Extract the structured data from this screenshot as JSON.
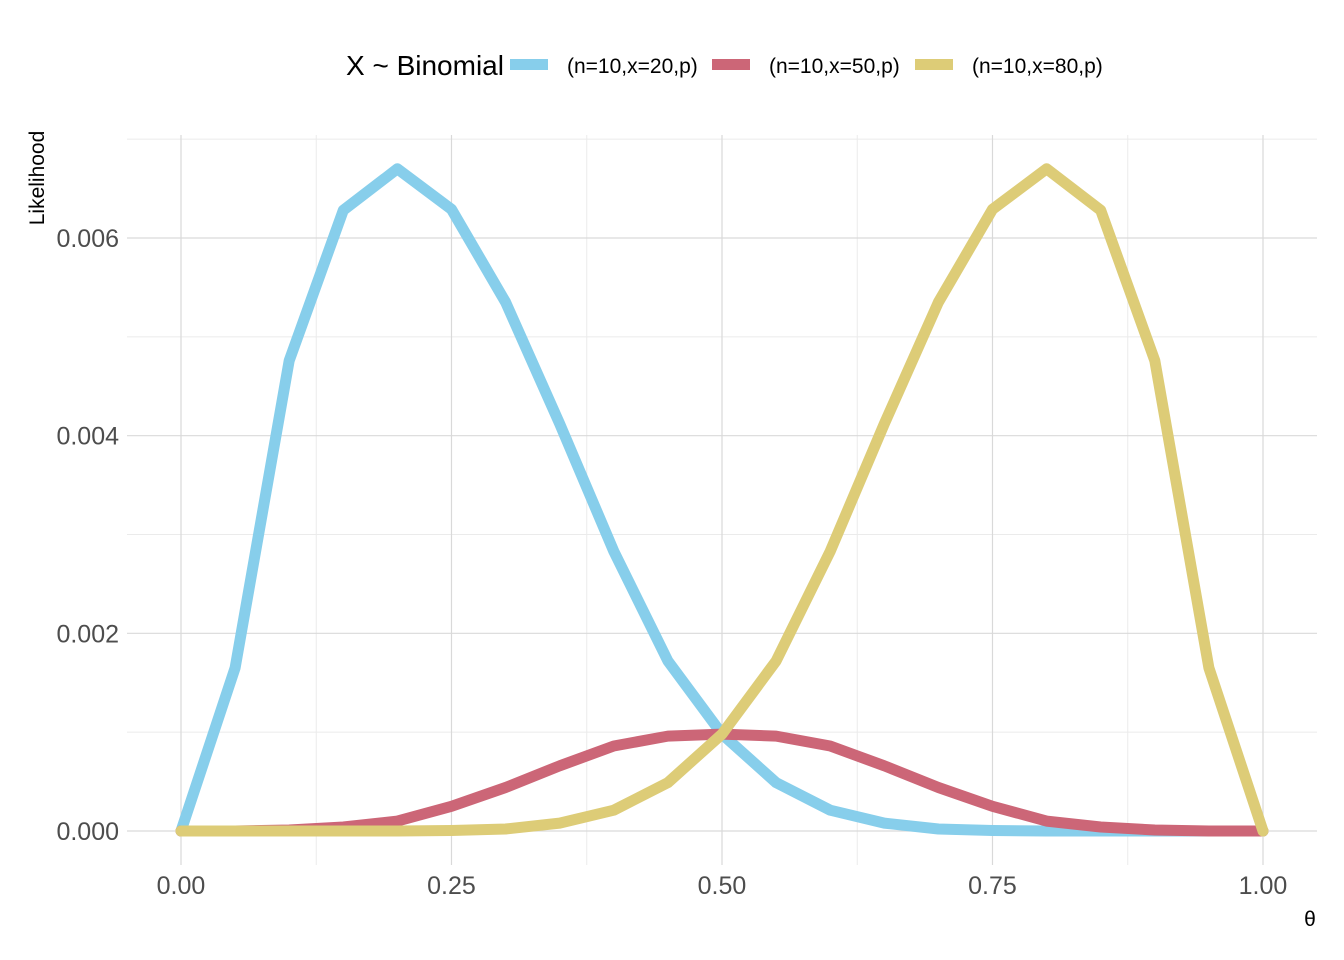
{
  "chart_data": {
    "type": "line",
    "xlabel": "θ",
    "ylabel": "Likelihood",
    "xlim": [
      0,
      1
    ],
    "ylim": [
      0,
      0.0068
    ],
    "x_ticks": [
      0,
      0.25,
      0.5,
      0.75,
      1
    ],
    "x_tick_labels": [
      "0.00",
      "0.25",
      "0.50",
      "0.75",
      "1.00"
    ],
    "y_ticks": [
      0,
      0.002,
      0.004,
      0.006
    ],
    "y_tick_labels": [
      "0.000",
      "0.002",
      "0.004",
      "0.006"
    ],
    "grid": true,
    "legend": {
      "title": "X ~ Binomial",
      "position": "top"
    },
    "series": [
      {
        "name": "(n=10,x=20,p)",
        "color": "#87CEEB",
        "x": [
          0,
          0.05,
          0.1,
          0.15,
          0.2,
          0.25,
          0.3,
          0.35,
          0.4,
          0.45,
          0.5,
          0.55,
          0.6,
          0.65,
          0.7,
          0.75,
          0.8,
          0.85,
          0.9,
          0.95,
          1
        ],
        "values": [
          0,
          0.00165,
          0.00476,
          0.00628,
          0.0067,
          0.00629,
          0.00535,
          0.00412,
          0.00283,
          0.00172,
          0.00098,
          0.00049,
          0.00021,
          8e-05,
          2e-05,
          5e-06,
          0,
          0,
          0,
          0,
          0
        ]
      },
      {
        "name": "(n=10,x=50,p)",
        "color": "#CC6677",
        "x": [
          0,
          0.05,
          0.1,
          0.15,
          0.2,
          0.25,
          0.3,
          0.35,
          0.4,
          0.45,
          0.5,
          0.55,
          0.6,
          0.65,
          0.7,
          0.75,
          0.8,
          0.85,
          0.9,
          0.95,
          1
        ],
        "values": [
          0,
          0,
          1e-05,
          4e-05,
          0.0001,
          0.00025,
          0.00044,
          0.00066,
          0.00086,
          0.00096,
          0.00098,
          0.00096,
          0.00086,
          0.00066,
          0.00044,
          0.00025,
          0.0001,
          4e-05,
          1e-05,
          0,
          0
        ]
      },
      {
        "name": "(n=10,x=80,p)",
        "color": "#DDCC77",
        "x": [
          0,
          0.05,
          0.1,
          0.15,
          0.2,
          0.25,
          0.3,
          0.35,
          0.4,
          0.45,
          0.5,
          0.55,
          0.6,
          0.65,
          0.7,
          0.75,
          0.8,
          0.85,
          0.9,
          0.95,
          1
        ],
        "values": [
          0,
          0,
          0,
          0,
          0,
          5e-06,
          2e-05,
          8e-05,
          0.00021,
          0.00049,
          0.00098,
          0.00172,
          0.00283,
          0.00412,
          0.00535,
          0.00629,
          0.0067,
          0.00628,
          0.00476,
          0.00165,
          0
        ]
      }
    ]
  }
}
